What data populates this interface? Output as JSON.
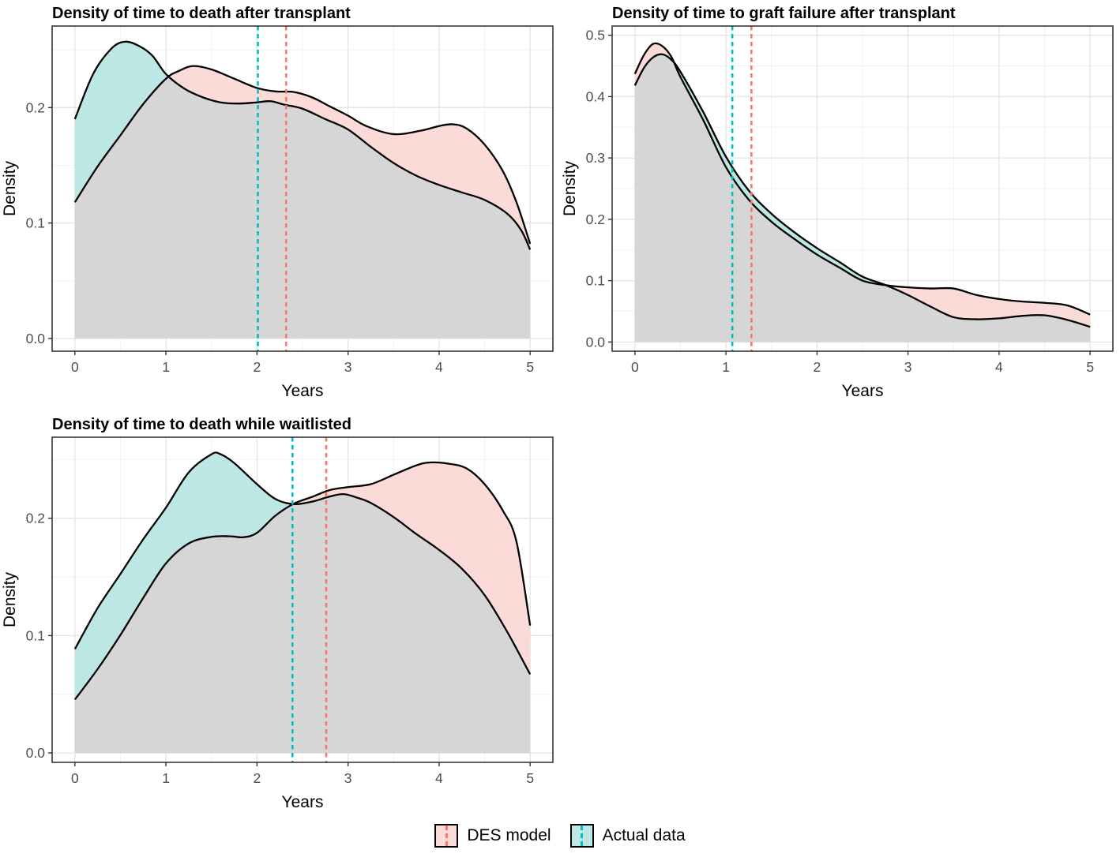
{
  "figure": {
    "background": "#ffffff",
    "curve_stroke": "#000000",
    "grid_major_color": "#e4e4e4",
    "grid_minor_color": "#f1f1f1",
    "panel_border_color": "#2b2b2b",
    "tick_label_color": "#4d4d4d",
    "overlap_fill": "#d6d6d6"
  },
  "legend": {
    "position": "bottom-center",
    "items": [
      {
        "label": "DES model",
        "fill": "#fbdbd7",
        "line_color": "#f8766d"
      },
      {
        "label": "Actual data",
        "fill": "#bde7e5",
        "line_color": "#00bfc4"
      }
    ]
  },
  "chart_data": [
    {
      "type": "area",
      "title": "Density of time to death after transplant",
      "xlabel": "Years",
      "ylabel": "Density",
      "xlim": [
        -0.25,
        5.25
      ],
      "ylim": [
        -0.011,
        0.2706
      ],
      "xticks": [
        0,
        1,
        2,
        3,
        4,
        5
      ],
      "xtick_labels": [
        "0",
        "1",
        "2",
        "3",
        "4",
        "5"
      ],
      "yticks": [
        0,
        0.1,
        0.2
      ],
      "ytick_labels": [
        "0.0",
        "0.1",
        "0.2"
      ],
      "grid": true,
      "series": [
        {
          "name": "DES model",
          "fill": "#fbdbd7",
          "x": [
            0,
            0.25,
            0.5,
            0.75,
            1.0,
            1.15,
            1.3,
            1.5,
            1.75,
            2.0,
            2.2,
            2.4,
            2.6,
            2.8,
            3.0,
            3.2,
            3.5,
            3.8,
            4.0,
            4.15,
            4.3,
            4.5,
            4.7,
            4.85,
            5.0
          ],
          "y": [
            0.118,
            0.149,
            0.176,
            0.203,
            0.225,
            0.232,
            0.236,
            0.233,
            0.225,
            0.217,
            0.214,
            0.2135,
            0.209,
            0.201,
            0.193,
            0.184,
            0.177,
            0.18,
            0.184,
            0.1855,
            0.182,
            0.168,
            0.145,
            0.118,
            0.082
          ]
        },
        {
          "name": "Actual data",
          "fill": "#bde7e5",
          "x": [
            0,
            0.2,
            0.4,
            0.55,
            0.7,
            0.85,
            1.0,
            1.2,
            1.4,
            1.6,
            1.8,
            2.0,
            2.15,
            2.3,
            2.5,
            2.75,
            3.0,
            3.25,
            3.5,
            3.75,
            4.0,
            4.25,
            4.5,
            4.75,
            4.9,
            5.0
          ],
          "y": [
            0.19,
            0.229,
            0.251,
            0.257,
            0.2535,
            0.245,
            0.229,
            0.2165,
            0.209,
            0.2045,
            0.2035,
            0.2045,
            0.2055,
            0.2025,
            0.199,
            0.19,
            0.181,
            0.166,
            0.152,
            0.141,
            0.133,
            0.1265,
            0.12,
            0.108,
            0.094,
            0.077
          ]
        }
      ],
      "vlines": [
        {
          "label": "Actual data mean",
          "x": 2.01,
          "color": "#00bfc4"
        },
        {
          "label": "DES model mean",
          "x": 2.32,
          "color": "#f8766d"
        }
      ]
    },
    {
      "type": "area",
      "title": "Density of time to graft failure after transplant",
      "xlabel": "Years",
      "ylabel": "Density",
      "xlim": [
        -0.25,
        5.25
      ],
      "ylim": [
        -0.015,
        0.515
      ],
      "xticks": [
        0,
        1,
        2,
        3,
        4,
        5
      ],
      "xtick_labels": [
        "0",
        "1",
        "2",
        "3",
        "4",
        "5"
      ],
      "yticks": [
        0,
        0.1,
        0.2,
        0.3,
        0.4,
        0.5
      ],
      "ytick_labels": [
        "0.0",
        "0.1",
        "0.2",
        "0.3",
        "0.4",
        "0.5"
      ],
      "grid": true,
      "series": [
        {
          "name": "DES model",
          "fill": "#fbdbd7",
          "x": [
            0,
            0.1,
            0.2,
            0.3,
            0.4,
            0.5,
            0.75,
            1.0,
            1.25,
            1.5,
            1.75,
            2.0,
            2.25,
            2.5,
            2.75,
            3.0,
            3.25,
            3.5,
            3.75,
            4.0,
            4.25,
            4.5,
            4.75,
            5.0
          ],
          "y": [
            0.437,
            0.468,
            0.486,
            0.4825,
            0.465,
            0.432,
            0.362,
            0.285,
            0.232,
            0.196,
            0.168,
            0.1425,
            0.121,
            0.1,
            0.0927,
            0.089,
            0.0872,
            0.0872,
            0.0766,
            0.07,
            0.066,
            0.0638,
            0.0596,
            0.0447
          ]
        },
        {
          "name": "Actual data",
          "fill": "#bde7e5",
          "x": [
            0,
            0.1,
            0.2,
            0.3,
            0.4,
            0.5,
            0.75,
            1.0,
            1.25,
            1.5,
            1.75,
            2.0,
            2.25,
            2.5,
            2.75,
            3.0,
            3.25,
            3.5,
            3.75,
            4.0,
            4.25,
            4.5,
            4.75,
            5.0
          ],
          "y": [
            0.418,
            0.447,
            0.464,
            0.469,
            0.46,
            0.4405,
            0.375,
            0.302,
            0.247,
            0.209,
            0.179,
            0.153,
            0.13,
            0.1065,
            0.093,
            0.0765,
            0.0575,
            0.0404,
            0.037,
            0.0385,
            0.0425,
            0.0435,
            0.036,
            0.0247
          ]
        }
      ],
      "vlines": [
        {
          "label": "Actual data mean",
          "x": 1.07,
          "color": "#00bfc4"
        },
        {
          "label": "DES model mean",
          "x": 1.28,
          "color": "#f8766d"
        }
      ]
    },
    {
      "type": "area",
      "title": "Density of time to death while waitlisted",
      "xlabel": "Years",
      "ylabel": "Density",
      "xlim": [
        -0.25,
        5.25
      ],
      "ylim": [
        -0.008,
        0.269
      ],
      "xticks": [
        0,
        1,
        2,
        3,
        4,
        5
      ],
      "xtick_labels": [
        "0",
        "1",
        "2",
        "3",
        "4",
        "5"
      ],
      "yticks": [
        0,
        0.1,
        0.2
      ],
      "ytick_labels": [
        "0.0",
        "0.1",
        "0.2"
      ],
      "grid": true,
      "series": [
        {
          "name": "DES model",
          "fill": "#fbdbd7",
          "x": [
            0,
            0.25,
            0.5,
            0.75,
            1.0,
            1.25,
            1.5,
            1.7,
            1.85,
            2.0,
            2.2,
            2.4,
            2.6,
            2.8,
            3.0,
            3.25,
            3.5,
            3.75,
            3.9,
            4.1,
            4.3,
            4.5,
            4.7,
            4.85,
            5.0
          ],
          "y": [
            0.0455,
            0.0715,
            0.1005,
            0.132,
            0.1615,
            0.1785,
            0.1841,
            0.1846,
            0.1838,
            0.1875,
            0.202,
            0.2122,
            0.218,
            0.224,
            0.2265,
            0.229,
            0.237,
            0.245,
            0.2475,
            0.2465,
            0.2425,
            0.229,
            0.2065,
            0.18,
            0.1085
          ]
        },
        {
          "name": "Actual data",
          "fill": "#bde7e5",
          "x": [
            0,
            0.25,
            0.5,
            0.75,
            1.0,
            1.25,
            1.5,
            1.6,
            1.75,
            2.0,
            2.2,
            2.4,
            2.6,
            2.8,
            2.95,
            3.1,
            3.25,
            3.5,
            3.75,
            4.0,
            4.25,
            4.5,
            4.75,
            5.0
          ],
          "y": [
            0.0885,
            0.1235,
            0.1525,
            0.182,
            0.209,
            0.239,
            0.2545,
            0.2545,
            0.247,
            0.229,
            0.2165,
            0.212,
            0.214,
            0.2185,
            0.2205,
            0.2175,
            0.213,
            0.201,
            0.1865,
            0.173,
            0.157,
            0.1345,
            0.103,
            0.067
          ]
        }
      ],
      "vlines": [
        {
          "label": "Actual data mean",
          "x": 2.39,
          "color": "#00bfc4"
        },
        {
          "label": "DES model mean",
          "x": 2.76,
          "color": "#f8766d"
        }
      ]
    }
  ]
}
